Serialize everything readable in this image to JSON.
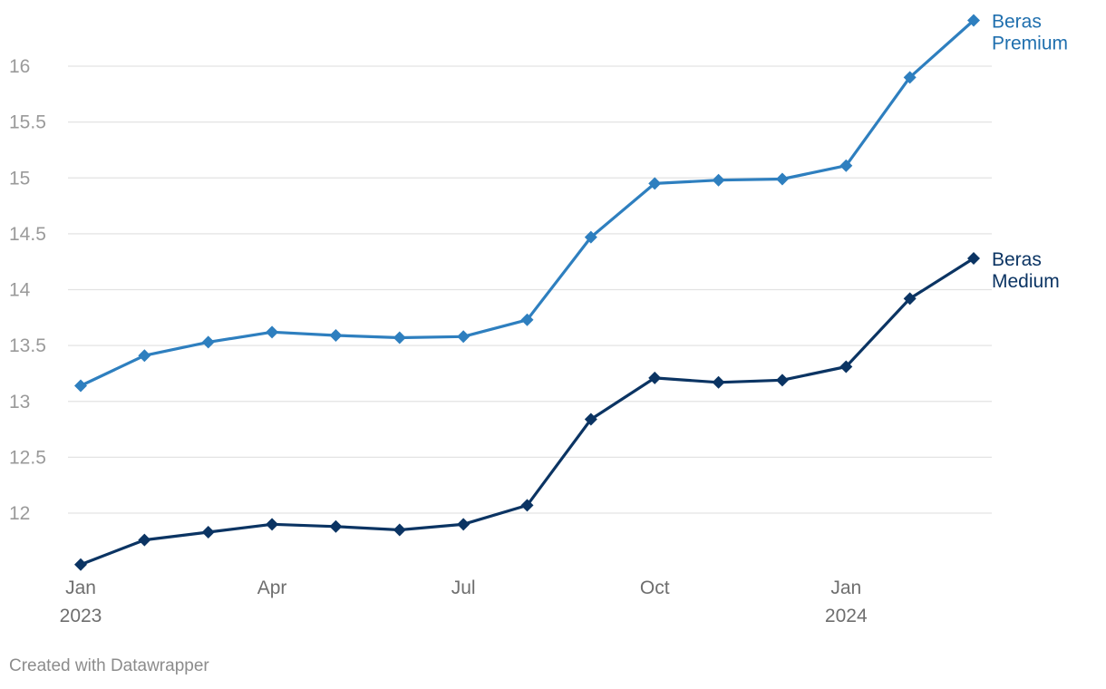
{
  "chart_data": {
    "type": "line",
    "title": "",
    "xlabel": "",
    "ylabel": "",
    "ylim": [
      11.55,
      16.4
    ],
    "yticks": [
      12,
      12.5,
      13,
      13.5,
      14,
      14.5,
      15,
      15.5,
      16
    ],
    "x": [
      "2023-01",
      "2023-02",
      "2023-03",
      "2023-04",
      "2023-05",
      "2023-06",
      "2023-07",
      "2023-08",
      "2023-09",
      "2023-10",
      "2023-11",
      "2023-12",
      "2024-01",
      "2024-02",
      "2024-03"
    ],
    "xticks": [
      {
        "index": 0,
        "line1": "Jan",
        "line2": "2023"
      },
      {
        "index": 3,
        "line1": "Apr",
        "line2": ""
      },
      {
        "index": 6,
        "line1": "Jul",
        "line2": ""
      },
      {
        "index": 9,
        "line1": "Oct",
        "line2": ""
      },
      {
        "index": 12,
        "line1": "Jan",
        "line2": "2024"
      }
    ],
    "series": [
      {
        "name": "Beras Premium",
        "label_lines": [
          "Beras",
          "Premium"
        ],
        "line_color": "#2e7fbf",
        "label_color": "#1f6fae",
        "values": [
          13.14,
          13.41,
          13.53,
          13.62,
          13.59,
          13.57,
          13.58,
          13.73,
          14.47,
          14.95,
          14.98,
          14.99,
          15.11,
          15.9,
          16.41
        ]
      },
      {
        "name": "Beras Medium",
        "label_lines": [
          "Beras",
          "Medium"
        ],
        "line_color": "#0b3463",
        "label_color": "#0b3463",
        "values": [
          11.54,
          11.76,
          11.83,
          11.9,
          11.88,
          11.85,
          11.9,
          12.07,
          12.84,
          13.21,
          13.17,
          13.19,
          13.31,
          13.92,
          14.28
        ]
      }
    ],
    "grid": true,
    "legend": "direct-labels-right"
  },
  "credit": "Created with Datawrapper"
}
